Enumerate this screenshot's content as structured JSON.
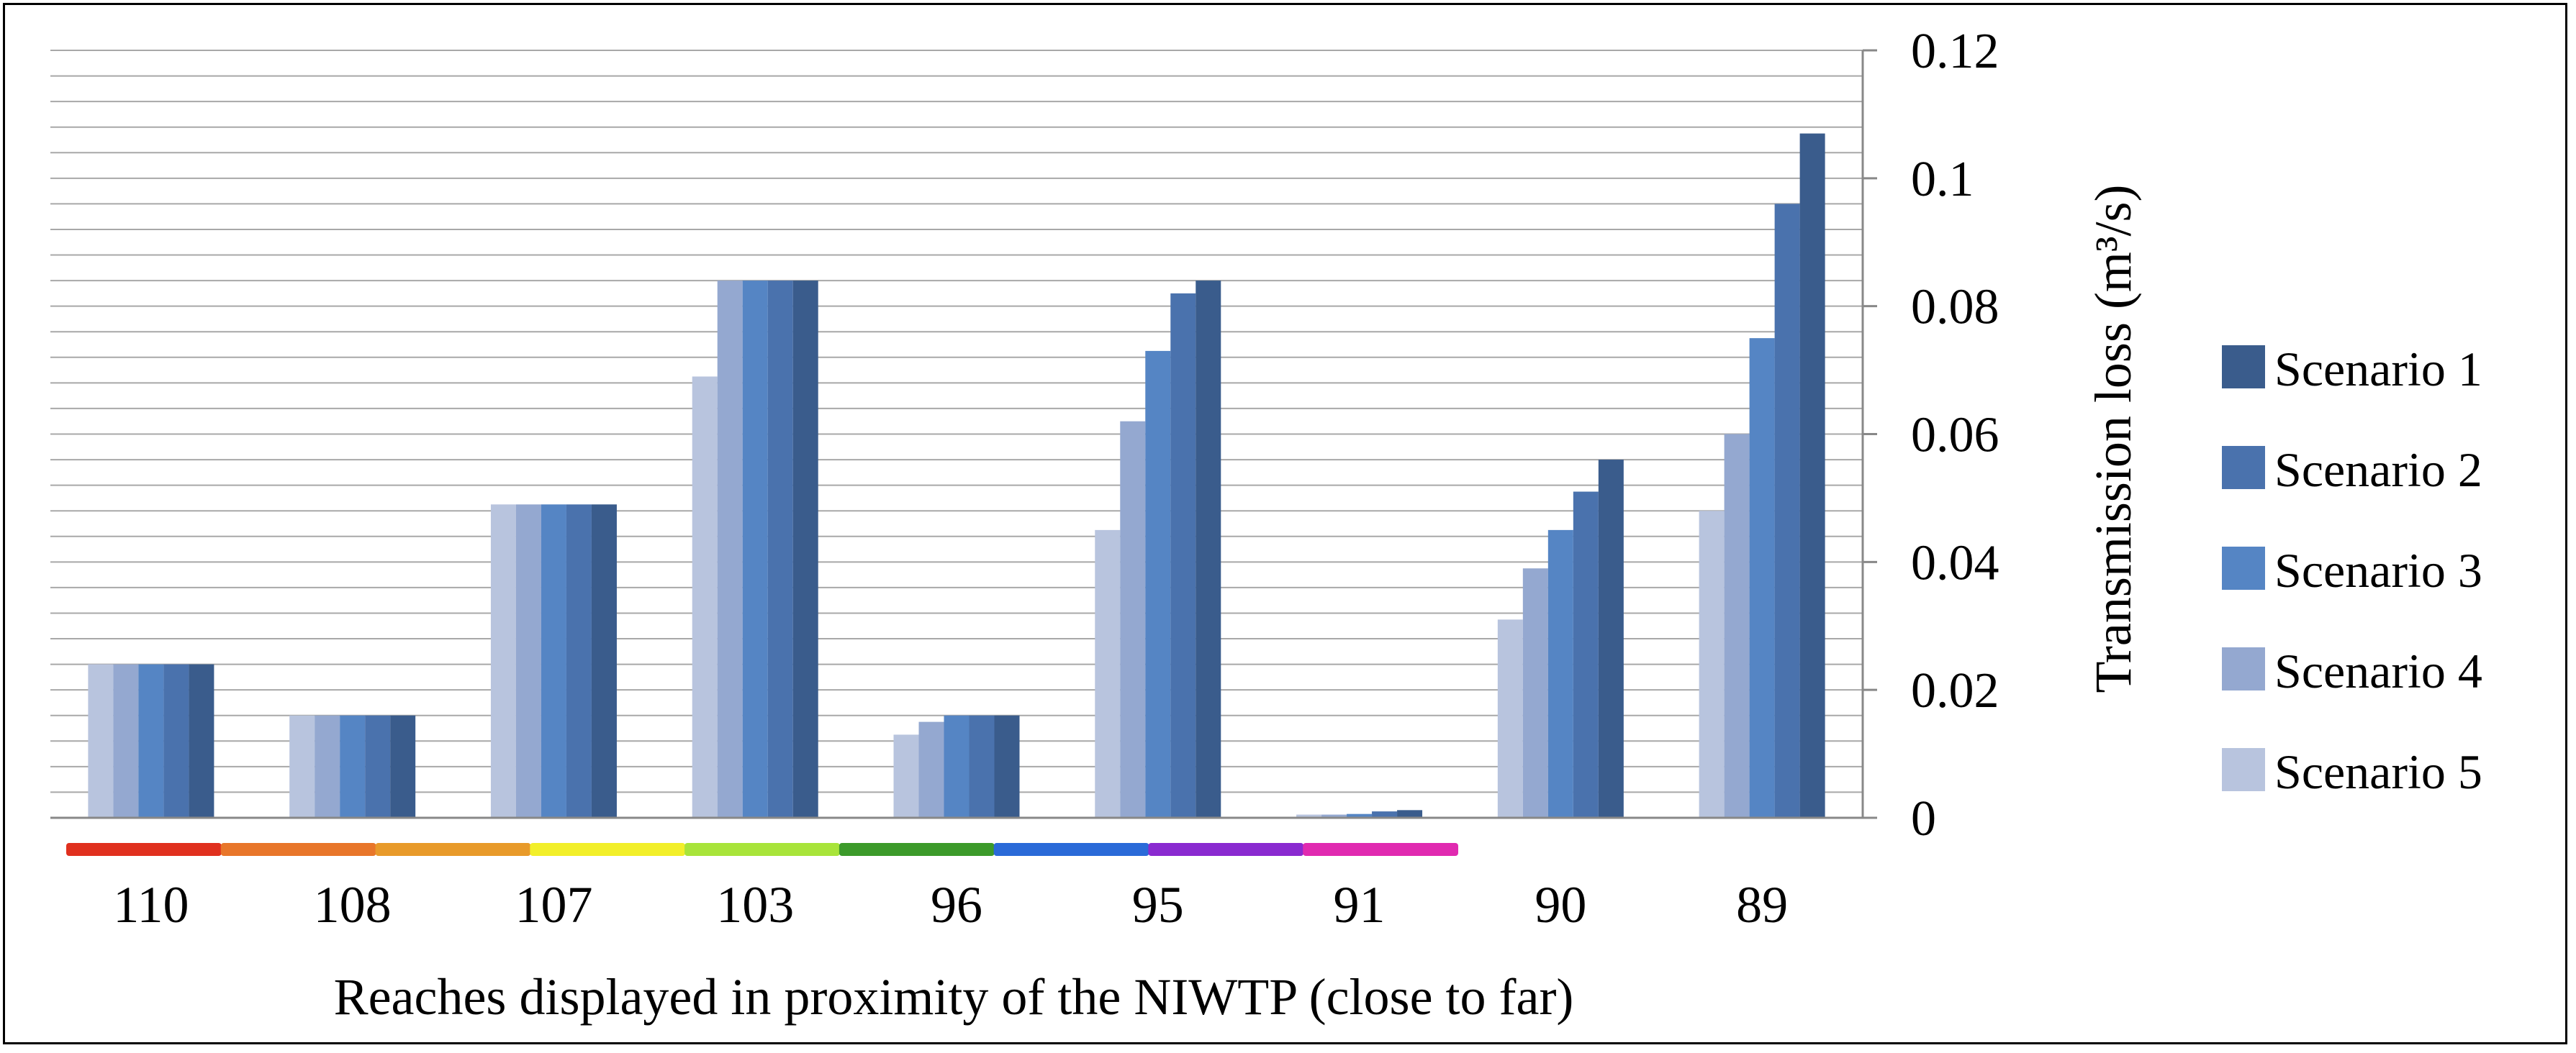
{
  "chart_data": {
    "type": "bar",
    "title": "",
    "xlabel": "Reaches displayed in proximity of the NIWTP (close to far)",
    "ylabel_main": "Transmission loss",
    "ylabel_unit": "(m³/s)",
    "ylim": [
      0,
      0.12
    ],
    "yticks": [
      "0",
      "0.02",
      "0.04",
      "0.06",
      "0.08",
      "0.1",
      "0.12"
    ],
    "grid": true,
    "legend_position": "right",
    "categories": [
      "110",
      "108",
      "107",
      "103",
      "96",
      "95",
      "91",
      "90",
      "89"
    ],
    "series": [
      {
        "name": "Scenario 5",
        "color": "#b8c4de",
        "values": [
          0.024,
          0.016,
          0.049,
          0.069,
          0.013,
          0.045,
          0.0005,
          0.031,
          0.048
        ]
      },
      {
        "name": "Scenario 4",
        "color": "#94a8d0",
        "values": [
          0.024,
          0.016,
          0.049,
          0.084,
          0.015,
          0.062,
          0.0005,
          0.039,
          0.06
        ]
      },
      {
        "name": "Scenario 3",
        "color": "#5585c4",
        "values": [
          0.024,
          0.016,
          0.049,
          0.084,
          0.016,
          0.073,
          0.0006,
          0.045,
          0.075
        ]
      },
      {
        "name": "Scenario 2",
        "color": "#4a72ad",
        "values": [
          0.024,
          0.016,
          0.049,
          0.084,
          0.016,
          0.082,
          0.001,
          0.051,
          0.096
        ]
      },
      {
        "name": "Scenario 1",
        "color": "#3a5c8c",
        "values": [
          0.024,
          0.016,
          0.049,
          0.084,
          0.016,
          0.084,
          0.0012,
          0.056,
          0.107
        ]
      }
    ],
    "legend_order": [
      "Scenario 1",
      "Scenario 2",
      "Scenario 3",
      "Scenario 4",
      "Scenario 5"
    ],
    "proximity_bar_colors": [
      "#e0301e",
      "#e8762a",
      "#e89a2a",
      "#f2ef2a",
      "#a8e43a",
      "#3c9a2a",
      "#2a6ad8",
      "#8a2ad0",
      "#e02ab0"
    ]
  }
}
